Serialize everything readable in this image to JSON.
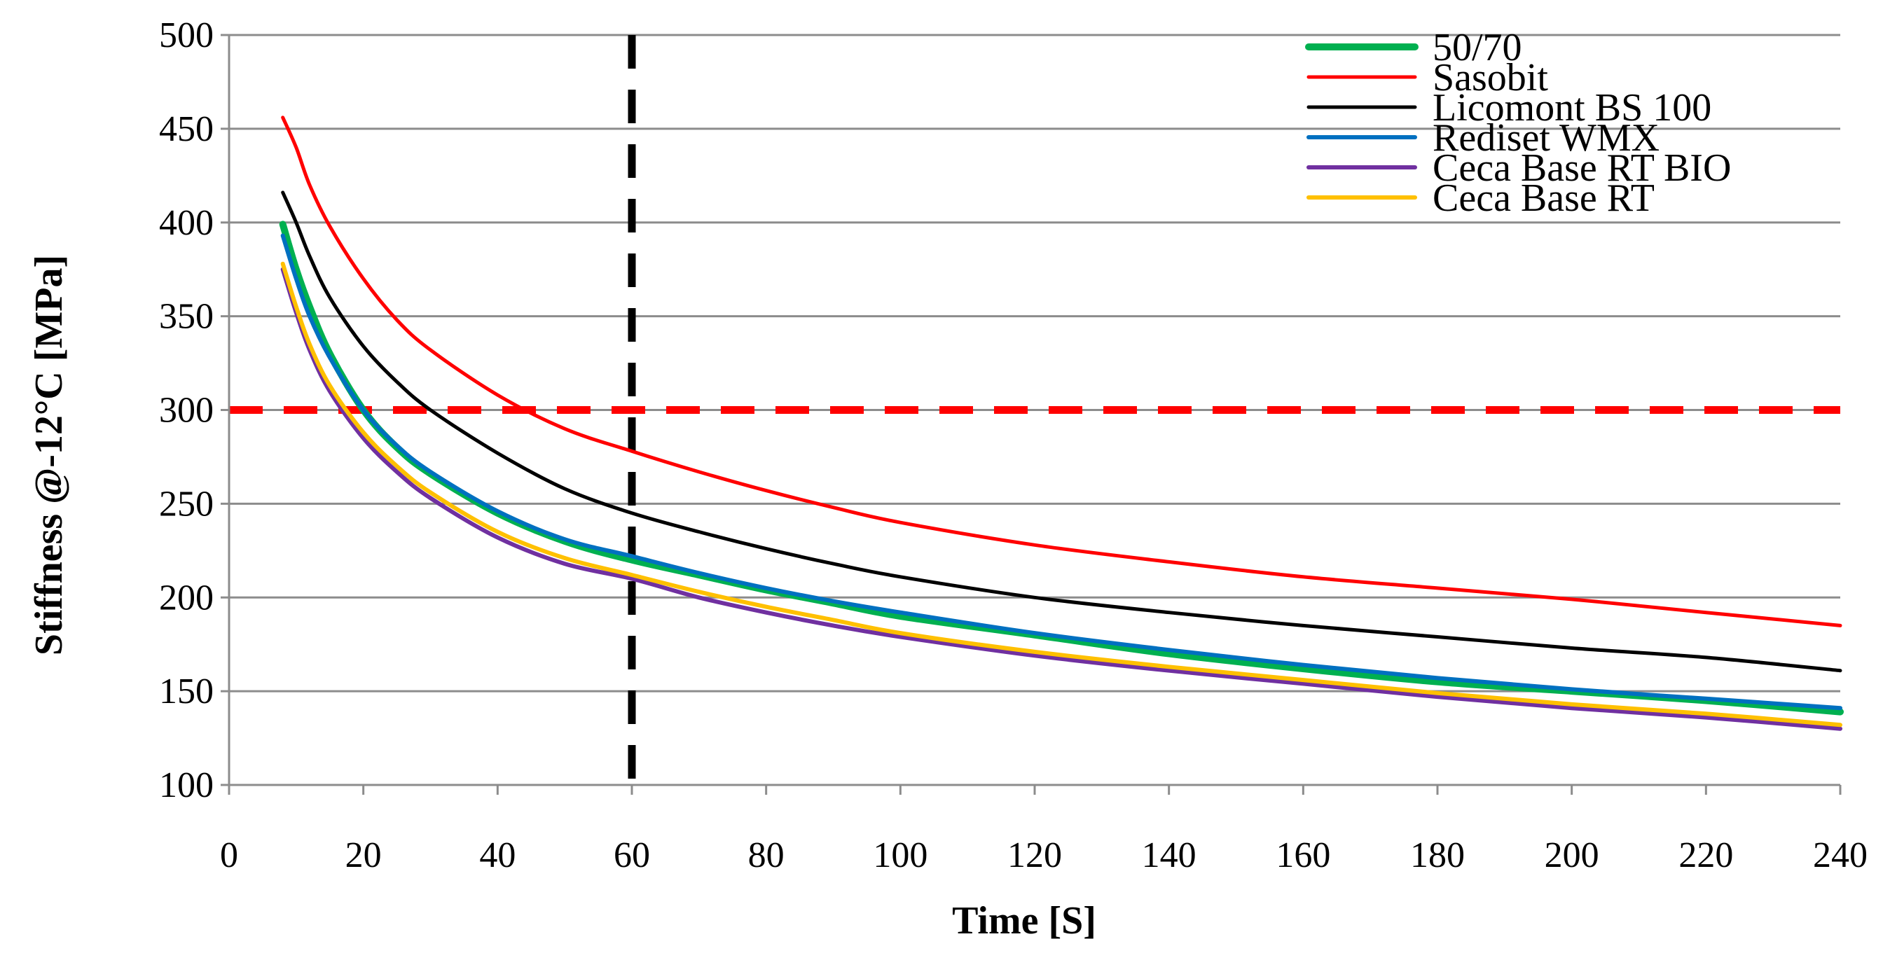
{
  "chart_data": {
    "type": "line",
    "title": "",
    "xlabel": "Time [S]",
    "ylabel": "Stiffness @-12°C [MPa]",
    "xlim": [
      0,
      240
    ],
    "ylim": [
      100,
      500
    ],
    "xticks": [
      0,
      20,
      40,
      60,
      80,
      100,
      120,
      140,
      160,
      180,
      200,
      220,
      240
    ],
    "yticks": [
      100,
      150,
      200,
      250,
      300,
      350,
      400,
      450,
      500
    ],
    "grid": "horizontal",
    "legend_position": "top-right",
    "x": [
      8,
      10,
      12,
      15,
      20,
      25,
      30,
      40,
      50,
      60,
      70,
      80,
      90,
      100,
      120,
      140,
      160,
      180,
      200,
      220,
      240
    ],
    "series": [
      {
        "name": "50/70",
        "color": "#00b050",
        "width": 10,
        "values": [
          399,
          375,
          355,
          330,
          300,
          280,
          266,
          245,
          230,
          220,
          212,
          204,
          197,
          190,
          180,
          170,
          162,
          155,
          150,
          145,
          139
        ]
      },
      {
        "name": "Sasobit",
        "color": "#ff0000",
        "width": 5,
        "values": [
          456,
          440,
          420,
          398,
          370,
          348,
          332,
          308,
          290,
          278,
          267,
          257,
          248,
          240,
          228,
          219,
          211,
          205,
          199,
          192,
          185
        ]
      },
      {
        "name": "Licomont BS 100",
        "color": "#000000",
        "width": 5,
        "values": [
          416,
          400,
          382,
          360,
          334,
          315,
          300,
          277,
          258,
          245,
          235,
          226,
          218,
          211,
          200,
          192,
          185,
          179,
          173,
          168,
          161
        ]
      },
      {
        "name": "Rediset WMX",
        "color": "#0070c0",
        "width": 6,
        "values": [
          393,
          370,
          350,
          328,
          300,
          281,
          267,
          246,
          231,
          222,
          213,
          205,
          198,
          192,
          181,
          172,
          164,
          157,
          151,
          146,
          141
        ]
      },
      {
        "name": "Ceca Base RT BIO",
        "color": "#7030a0",
        "width": 6,
        "values": [
          375,
          352,
          332,
          310,
          285,
          267,
          253,
          232,
          218,
          210,
          200,
          192,
          185,
          179,
          169,
          161,
          154,
          147,
          141,
          136,
          130
        ]
      },
      {
        "name": "Ceca Base RT",
        "color": "#ffc000",
        "width": 6,
        "values": [
          378,
          355,
          335,
          313,
          288,
          270,
          256,
          235,
          221,
          212,
          203,
          195,
          188,
          181,
          171,
          163,
          156,
          149,
          143,
          138,
          132
        ]
      }
    ],
    "reference_lines": [
      {
        "orientation": "horizontal",
        "value": 300,
        "color": "#ff0000",
        "style": "dashed"
      },
      {
        "orientation": "vertical",
        "value": 60,
        "color": "#000000",
        "style": "dashed"
      }
    ]
  }
}
